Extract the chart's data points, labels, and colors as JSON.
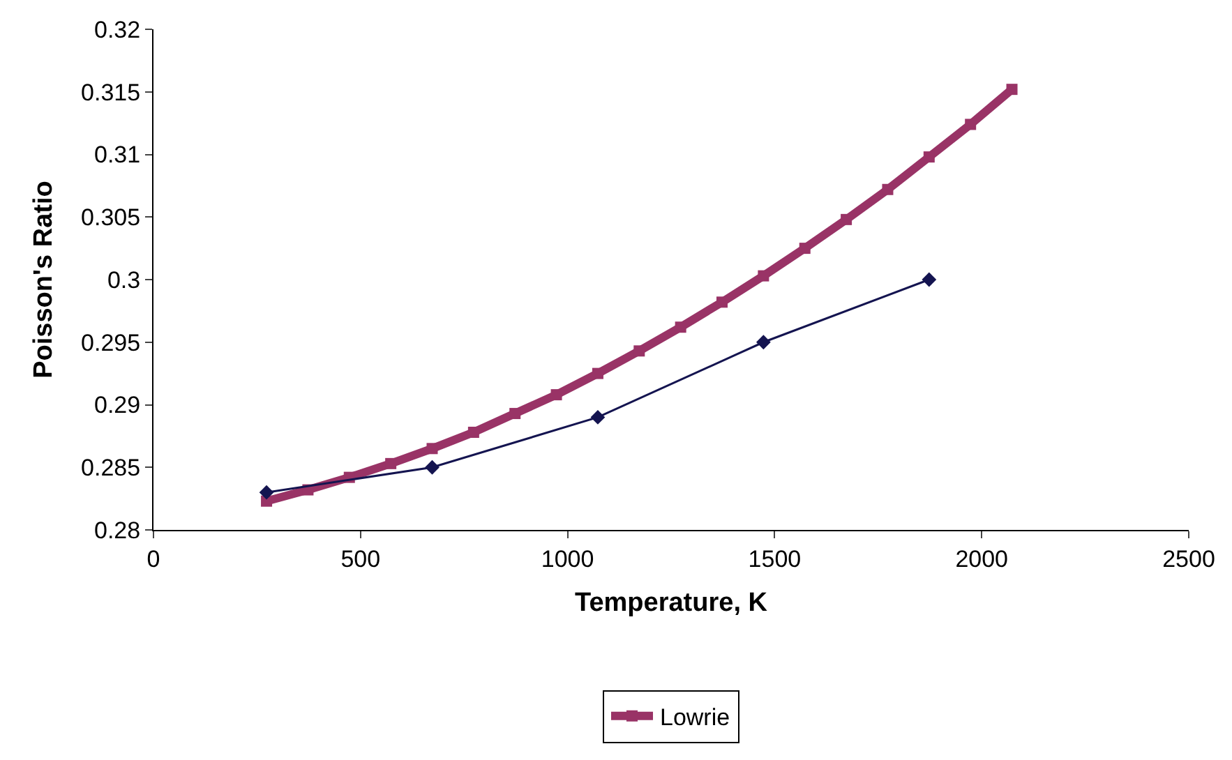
{
  "chart_data": {
    "type": "line",
    "xlabel": "Temperature, K",
    "ylabel": "Poisson's Ratio",
    "xlim": [
      0,
      2500
    ],
    "xticks": [
      0,
      500,
      1000,
      1500,
      2000,
      2500
    ],
    "ylim": [
      0.28,
      0.32
    ],
    "yticks": [
      0.28,
      0.285,
      0.29,
      0.295,
      0.3,
      0.305,
      0.31,
      0.315,
      0.32
    ],
    "legend": "bottom",
    "series": [
      {
        "name": "Lowrie",
        "color": "#993366",
        "marker": "square",
        "x": [
          273,
          373,
          473,
          573,
          673,
          773,
          873,
          973,
          1073,
          1173,
          1273,
          1373,
          1473,
          1573,
          1673,
          1773,
          1873,
          1973,
          2073
        ],
        "values": [
          0.2823,
          0.2832,
          0.2842,
          0.2853,
          0.2865,
          0.2878,
          0.2893,
          0.2908,
          0.2925,
          0.2943,
          0.2962,
          0.2982,
          0.3003,
          0.3025,
          0.3048,
          0.3072,
          0.3098,
          0.3124,
          0.3152
        ]
      },
      {
        "color": "#141450",
        "marker": "diamond",
        "x": [
          273,
          673,
          1073,
          1473,
          1873
        ],
        "values": [
          0.283,
          0.285,
          0.289,
          0.295,
          0.3
        ]
      }
    ]
  }
}
